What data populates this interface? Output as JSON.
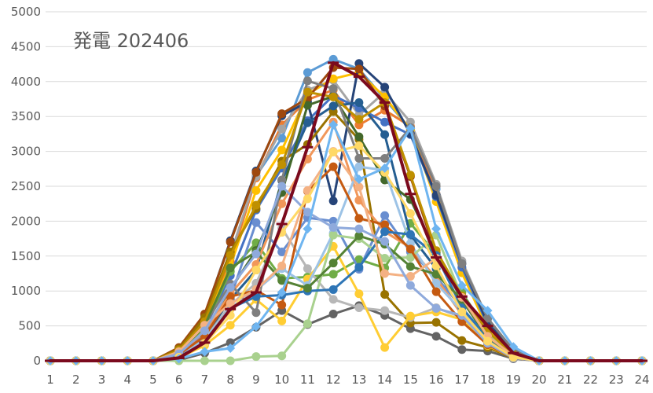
{
  "chart_data": {
    "type": "line",
    "title": "発電 202406",
    "xlabel": "",
    "ylabel": "",
    "xlim": [
      1,
      24
    ],
    "ylim": [
      0,
      5000
    ],
    "y_ticks": [
      "0",
      "500",
      "1000",
      "1500",
      "2000",
      "2500",
      "3000",
      "3500",
      "4000",
      "4500",
      "5000"
    ],
    "x": [
      1,
      2,
      3,
      4,
      5,
      6,
      7,
      8,
      9,
      10,
      11,
      12,
      13,
      14,
      15,
      16,
      17,
      18,
      19,
      20,
      21,
      22,
      23,
      24
    ],
    "x_ticks": [
      "1",
      "2",
      "3",
      "4",
      "5",
      "6",
      "7",
      "8",
      "9",
      "10",
      "11",
      "12",
      "13",
      "14",
      "15",
      "16",
      "17",
      "18",
      "19",
      "20",
      "21",
      "22",
      "23",
      "24"
    ],
    "grid": "horizontal",
    "legend": "none",
    "series": [
      {
        "color": "#5b9bd5",
        "marker": "circle",
        "values": [
          0,
          0,
          0,
          0,
          0,
          130,
          560,
          1480,
          2650,
          3190,
          4130,
          4320,
          4180,
          3750,
          3320,
          2460,
          1400,
          480,
          110,
          0,
          0,
          0,
          0,
          0
        ]
      },
      {
        "color": "#ed7d31",
        "marker": "circle",
        "values": [
          0,
          0,
          0,
          0,
          0,
          160,
          600,
          1420,
          2620,
          3380,
          3740,
          3880,
          3380,
          3590,
          3360,
          2390,
          1330,
          520,
          130,
          0,
          0,
          0,
          0,
          0
        ]
      },
      {
        "color": "#a5a5a5",
        "marker": "circle",
        "values": [
          0,
          0,
          0,
          0,
          0,
          150,
          580,
          1520,
          2640,
          3320,
          3880,
          4020,
          3520,
          3850,
          3420,
          2530,
          1430,
          600,
          160,
          0,
          0,
          0,
          0,
          0
        ]
      },
      {
        "color": "#ffc000",
        "marker": "circle",
        "values": [
          0,
          0,
          0,
          0,
          0,
          140,
          540,
          1360,
          2440,
          3020,
          3820,
          4040,
          4130,
          3780,
          3310,
          2280,
          1260,
          460,
          100,
          0,
          0,
          0,
          0,
          0
        ]
      },
      {
        "color": "#4472c4",
        "marker": "circle",
        "values": [
          0,
          0,
          0,
          0,
          0,
          110,
          460,
          1220,
          2160,
          2760,
          3440,
          3800,
          3620,
          3420,
          3240,
          2350,
          1340,
          510,
          120,
          0,
          0,
          0,
          0,
          0
        ]
      },
      {
        "color": "#70ad47",
        "marker": "circle",
        "values": [
          0,
          0,
          0,
          0,
          0,
          120,
          480,
          1280,
          1690,
          1180,
          1200,
          1240,
          1450,
          1330,
          1970,
          1520,
          980,
          420,
          90,
          0,
          0,
          0,
          0,
          0
        ]
      },
      {
        "color": "#264478",
        "marker": "circle",
        "values": [
          0,
          0,
          0,
          0,
          0,
          180,
          660,
          1720,
          2720,
          3510,
          3710,
          2290,
          4260,
          3920,
          3250,
          2370,
          1390,
          540,
          140,
          0,
          0,
          0,
          0,
          0
        ]
      },
      {
        "color": "#9e480e",
        "marker": "circle",
        "values": [
          0,
          0,
          0,
          0,
          0,
          190,
          670,
          1700,
          2700,
          3540,
          3760,
          4200,
          4180,
          3650,
          2640,
          1520,
          900,
          380,
          80,
          0,
          0,
          0,
          0,
          0
        ]
      },
      {
        "color": "#636363",
        "marker": "circle",
        "values": [
          0,
          0,
          0,
          0,
          0,
          10,
          110,
          260,
          480,
          720,
          520,
          670,
          790,
          650,
          460,
          350,
          160,
          140,
          30,
          0,
          0,
          0,
          0,
          0
        ]
      },
      {
        "color": "#997300",
        "marker": "circle",
        "values": [
          0,
          0,
          0,
          0,
          0,
          170,
          620,
          1560,
          2180,
          2860,
          3100,
          3570,
          3170,
          950,
          540,
          550,
          290,
          190,
          40,
          0,
          0,
          0,
          0,
          0
        ]
      },
      {
        "color": "#255e91",
        "marker": "circle",
        "values": [
          0,
          0,
          0,
          0,
          0,
          80,
          340,
          880,
          1300,
          2580,
          3410,
          3650,
          3700,
          3240,
          1800,
          1320,
          720,
          260,
          60,
          0,
          0,
          0,
          0,
          0
        ]
      },
      {
        "color": "#43682b",
        "marker": "circle",
        "values": [
          0,
          0,
          0,
          0,
          0,
          60,
          380,
          1020,
          1580,
          2410,
          3660,
          3790,
          3210,
          2590,
          2310,
          1550,
          870,
          330,
          70,
          0,
          0,
          0,
          0,
          0
        ]
      },
      {
        "color": "#698ed0",
        "marker": "circle",
        "values": [
          0,
          0,
          0,
          0,
          0,
          90,
          390,
          900,
          1980,
          1560,
          2050,
          2000,
          1310,
          2080,
          1560,
          1200,
          760,
          290,
          60,
          0,
          0,
          0,
          0,
          0
        ]
      },
      {
        "color": "#f1975a",
        "marker": "circle",
        "values": [
          0,
          0,
          0,
          0,
          0,
          100,
          420,
          960,
          1380,
          2250,
          2890,
          3420,
          2300,
          1850,
          1620,
          1180,
          660,
          270,
          50,
          0,
          0,
          0,
          0,
          0
        ]
      },
      {
        "color": "#b7b7b7",
        "marker": "circle",
        "values": [
          0,
          0,
          0,
          0,
          0,
          70,
          310,
          800,
          1110,
          1900,
          1320,
          880,
          760,
          720,
          620,
          760,
          620,
          290,
          60,
          0,
          0,
          0,
          0,
          0
        ]
      },
      {
        "color": "#ffcd33",
        "marker": "circle",
        "values": [
          0,
          0,
          0,
          0,
          0,
          40,
          220,
          510,
          880,
          570,
          1170,
          1640,
          960,
          190,
          640,
          700,
          590,
          220,
          40,
          0,
          0,
          0,
          0,
          0
        ]
      },
      {
        "color": "#9dc3e6",
        "marker": "circle",
        "values": [
          0,
          0,
          0,
          0,
          0,
          60,
          300,
          760,
          1010,
          1320,
          1080,
          1830,
          2780,
          2730,
          1680,
          1110,
          710,
          260,
          50,
          0,
          0,
          0,
          0,
          0
        ]
      },
      {
        "color": "#a9d18e",
        "marker": "circle",
        "values": [
          0,
          0,
          0,
          0,
          0,
          0,
          0,
          0,
          60,
          70,
          530,
          1800,
          1750,
          1470,
          1480,
          1800,
          920,
          400,
          80,
          0,
          0,
          0,
          0,
          0
        ]
      },
      {
        "color": "#c55a11",
        "marker": "circle",
        "values": [
          0,
          0,
          0,
          0,
          0,
          90,
          350,
          920,
          1010,
          800,
          2430,
          2780,
          2040,
          1950,
          1600,
          990,
          560,
          230,
          40,
          0,
          0,
          0,
          0,
          0
        ]
      },
      {
        "color": "#7f7f7f",
        "marker": "circle",
        "values": [
          0,
          0,
          0,
          0,
          0,
          140,
          520,
          1100,
          690,
          2590,
          4010,
          3900,
          2900,
          2900,
          3340,
          2500,
          1390,
          610,
          150,
          0,
          0,
          0,
          0,
          0
        ]
      },
      {
        "color": "#bf9000",
        "marker": "circle",
        "values": [
          0,
          0,
          0,
          0,
          0,
          150,
          560,
          1510,
          2230,
          2810,
          3850,
          3780,
          3460,
          3700,
          2660,
          1580,
          930,
          420,
          90,
          0,
          0,
          0,
          0,
          0
        ]
      },
      {
        "color": "#2e75b6",
        "marker": "circle",
        "values": [
          0,
          0,
          0,
          0,
          0,
          60,
          250,
          750,
          920,
          940,
          1000,
          1020,
          1340,
          1850,
          1810,
          1510,
          760,
          330,
          60,
          0,
          0,
          0,
          0,
          0
        ]
      },
      {
        "color": "#548235",
        "marker": "circle",
        "values": [
          0,
          0,
          0,
          0,
          0,
          120,
          500,
          1330,
          1560,
          1150,
          1040,
          1400,
          1790,
          1670,
          1350,
          1240,
          880,
          340,
          70,
          0,
          0,
          0,
          0,
          0
        ]
      },
      {
        "color": "#f4b183",
        "marker": "circle",
        "values": [
          0,
          0,
          0,
          0,
          0,
          130,
          510,
          820,
          1020,
          1360,
          2440,
          3000,
          2490,
          1250,
          1210,
          1470,
          910,
          350,
          70,
          0,
          0,
          0,
          0,
          0
        ]
      },
      {
        "color": "#8faadc",
        "marker": "circle",
        "values": [
          0,
          0,
          0,
          0,
          0,
          100,
          430,
          1050,
          1530,
          2500,
          2130,
          1910,
          1890,
          1710,
          1080,
          750,
          650,
          250,
          40,
          0,
          0,
          0,
          0,
          0
        ]
      },
      {
        "color": "#ffd966",
        "marker": "circle",
        "values": [
          0,
          0,
          0,
          0,
          0,
          50,
          250,
          650,
          1300,
          1840,
          2320,
          2990,
          3080,
          2700,
          2110,
          1360,
          700,
          280,
          50,
          0,
          0,
          0,
          0,
          0
        ]
      },
      {
        "color": "#6fb5f0",
        "marker": "diamond",
        "values": [
          0,
          0,
          0,
          0,
          0,
          30,
          130,
          180,
          490,
          980,
          1890,
          3380,
          2600,
          2760,
          3330,
          1890,
          1080,
          720,
          200,
          0,
          0,
          0,
          0,
          0
        ]
      },
      {
        "color": "#7b0a1e",
        "marker": "dash",
        "values": [
          0,
          0,
          0,
          0,
          0,
          40,
          260,
          740,
          980,
          1960,
          3060,
          4270,
          4070,
          3700,
          2390,
          1480,
          920,
          500,
          110,
          0,
          0,
          0,
          0,
          0
        ]
      }
    ]
  }
}
